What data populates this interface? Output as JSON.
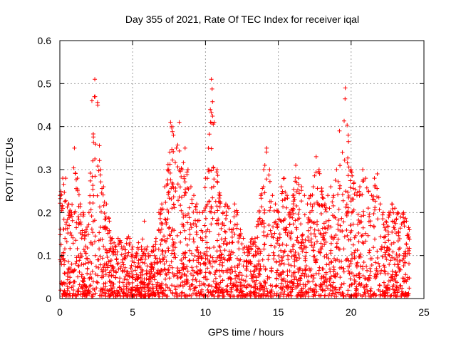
{
  "chart_data": {
    "type": "scatter",
    "title": "Day 355 of 2021, Rate Of TEC Index for receiver iqal",
    "xlabel": "GPS time / hours",
    "ylabel": "ROTI / TECUs",
    "xlim": [
      0,
      25
    ],
    "ylim": [
      0,
      0.6
    ],
    "x_ticks": [
      "0",
      "5",
      "10",
      "15",
      "20",
      "25"
    ],
    "y_ticks": [
      "0",
      "0.1",
      "0.2",
      "0.3",
      "0.4",
      "0.5",
      "0.6"
    ],
    "grid": true,
    "legend": "none",
    "marker": "+",
    "marker_color": "#ff0000",
    "series": [
      {
        "values_note_excluded": false,
        "x": [
          0.0,
          0.2,
          0.4,
          0.6,
          0.8,
          1.0,
          1.2,
          1.4,
          1.6,
          1.8,
          2.0,
          2.2,
          2.4,
          2.6,
          2.8,
          3.0,
          3.2,
          3.4,
          3.6,
          3.8,
          4.0,
          4.2,
          4.4,
          4.6,
          4.8,
          5.0,
          5.2,
          5.4,
          5.6,
          5.8,
          6.0,
          6.2,
          6.4,
          6.6,
          6.8,
          7.0,
          7.2,
          7.4,
          7.6,
          7.8,
          8.0,
          8.2,
          8.4,
          8.6,
          8.8,
          9.0,
          9.2,
          9.4,
          9.6,
          9.8,
          10.0,
          10.2,
          10.4,
          10.6,
          10.8,
          11.0,
          11.2,
          11.4,
          11.6,
          11.8,
          12.0,
          12.2,
          12.4,
          12.6,
          12.8,
          13.0,
          13.2,
          13.4,
          13.6,
          13.8,
          14.0,
          14.2,
          14.4,
          14.6,
          14.8,
          15.0,
          15.2,
          15.4,
          15.6,
          15.8,
          16.0,
          16.2,
          16.4,
          16.6,
          16.8,
          17.0,
          17.2,
          17.4,
          17.6,
          17.8,
          18.0,
          18.2,
          18.4,
          18.6,
          18.8,
          19.0,
          19.2,
          19.4,
          19.6,
          19.8,
          20.0,
          20.2,
          20.4,
          20.6,
          20.8,
          21.0,
          21.2,
          21.4,
          21.6,
          21.8,
          22.0,
          22.2,
          22.4,
          22.6,
          22.8,
          23.0,
          23.2,
          23.4,
          23.6,
          23.8,
          24.0
        ],
        "max": [
          0.24,
          0.28,
          0.28,
          0.22,
          0.2,
          0.35,
          0.28,
          0.22,
          0.2,
          0.16,
          0.2,
          0.46,
          0.51,
          0.45,
          0.3,
          0.26,
          0.22,
          0.18,
          0.14,
          0.12,
          0.14,
          0.13,
          0.12,
          0.14,
          0.14,
          0.12,
          0.1,
          0.13,
          0.12,
          0.18,
          0.12,
          0.1,
          0.12,
          0.14,
          0.2,
          0.22,
          0.26,
          0.3,
          0.41,
          0.38,
          0.35,
          0.41,
          0.3,
          0.35,
          0.3,
          0.26,
          0.24,
          0.22,
          0.2,
          0.2,
          0.28,
          0.35,
          0.51,
          0.41,
          0.3,
          0.24,
          0.2,
          0.22,
          0.21,
          0.16,
          0.22,
          0.2,
          0.16,
          0.14,
          0.12,
          0.12,
          0.14,
          0.14,
          0.18,
          0.24,
          0.3,
          0.35,
          0.3,
          0.24,
          0.22,
          0.2,
          0.26,
          0.28,
          0.24,
          0.2,
          0.24,
          0.31,
          0.28,
          0.26,
          0.24,
          0.22,
          0.24,
          0.26,
          0.33,
          0.3,
          0.25,
          0.22,
          0.24,
          0.26,
          0.24,
          0.3,
          0.39,
          0.34,
          0.49,
          0.38,
          0.3,
          0.27,
          0.24,
          0.26,
          0.3,
          0.28,
          0.25,
          0.24,
          0.28,
          0.29,
          0.22,
          0.2,
          0.18,
          0.2,
          0.22,
          0.21,
          0.2,
          0.19,
          0.2,
          0.18,
          0.16
        ]
      }
    ]
  }
}
